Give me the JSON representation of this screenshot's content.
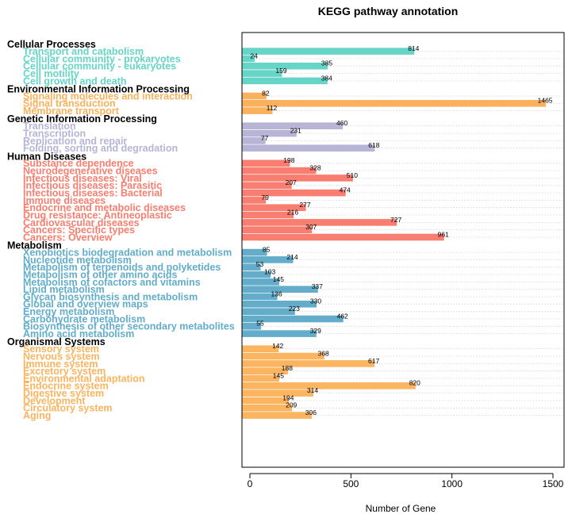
{
  "chart_data": {
    "type": "bar",
    "orientation": "horizontal",
    "title": "KEGG pathway annotation",
    "xlabel": "Number of Gene",
    "ylabel": "",
    "xlim": [
      0,
      1500
    ],
    "xticks": [
      0,
      500,
      1000,
      1500
    ],
    "grid": "dotted horizontal row lines",
    "groups": [
      {
        "name": "Cellular Processes",
        "color": "#66D4C6",
        "items": [
          {
            "label": "Transport and catabolism",
            "value": 814
          },
          {
            "label": "Cellular community - prokaryotes",
            "value": 24
          },
          {
            "label": "Cellular community - eukaryotes",
            "value": 385
          },
          {
            "label": "Cell motility",
            "value": 159
          },
          {
            "label": "Cell growth and death",
            "value": 384
          }
        ]
      },
      {
        "name": "Environmental Information Processing",
        "color": "#F9B15E",
        "items": [
          {
            "label": "Signaling molecules and interaction",
            "value": 82
          },
          {
            "label": "Signal transduction",
            "value": 1465
          },
          {
            "label": "Membrane transport",
            "value": 112
          }
        ]
      },
      {
        "name": "Genetic Information Processing",
        "color": "#B7B4D6",
        "items": [
          {
            "label": "Translation",
            "value": 460
          },
          {
            "label": "Transcription",
            "value": 231
          },
          {
            "label": "Replication and repair",
            "value": 77
          },
          {
            "label": "Folding, sorting and degradation",
            "value": 618
          }
        ]
      },
      {
        "name": "Human Diseases",
        "color": "#F77E70",
        "items": [
          {
            "label": "Substance dependence",
            "value": 198
          },
          {
            "label": "Neurodegenerative diseases",
            "value": 328
          },
          {
            "label": "Infectious diseases: Viral",
            "value": 510
          },
          {
            "label": "Infectious diseases: Parasitic",
            "value": 207
          },
          {
            "label": "Infectious diseases: Bacterial",
            "value": 474
          },
          {
            "label": "Immune diseases",
            "value": 79
          },
          {
            "label": "Endocrine and metabolic diseases",
            "value": 277
          },
          {
            "label": "Drug resistance: Antineoplastic",
            "value": 216
          },
          {
            "label": "Cardiovascular diseases",
            "value": 727
          },
          {
            "label": "Cancers: Specific types",
            "value": 307
          },
          {
            "label": "Cancers: Overview",
            "value": 961
          }
        ]
      },
      {
        "name": "Metabolism",
        "color": "#63ADCA",
        "items": [
          {
            "label": "Xenobiotics biodegradation and metabolism",
            "value": 85
          },
          {
            "label": "Nucleotide metabolism",
            "value": 214
          },
          {
            "label": "Metabolism of terpenoids and polyketides",
            "value": 53
          },
          {
            "label": "Metabolism of other amino acids",
            "value": 103
          },
          {
            "label": "Metabolism of cofactors and vitamins",
            "value": 145
          },
          {
            "label": "Lipid metabolism",
            "value": 337
          },
          {
            "label": "Glycan biosynthesis and metabolism",
            "value": 136
          },
          {
            "label": "Global and overview maps",
            "value": 330
          },
          {
            "label": "Energy metabolism",
            "value": 223
          },
          {
            "label": "Carbohydrate metabolism",
            "value": 462
          },
          {
            "label": "Biosynthesis of other secondary metabolites",
            "value": 55
          },
          {
            "label": "Amino acid metabolism",
            "value": 329
          }
        ]
      },
      {
        "name": "Organismal Systems",
        "color": "#FBB460",
        "items": [
          {
            "label": "Sensory system",
            "value": 142
          },
          {
            "label": "Nervous system",
            "value": 368
          },
          {
            "label": "Immune system",
            "value": 617
          },
          {
            "label": "Excretory system",
            "value": 188
          },
          {
            "label": "Environmental adaptation",
            "value": 145
          },
          {
            "label": "Endocrine system",
            "value": 820
          },
          {
            "label": "Digestive system",
            "value": 314
          },
          {
            "label": "Development",
            "value": 194
          },
          {
            "label": "Circulatory system",
            "value": 209
          },
          {
            "label": "Aging",
            "value": 306
          }
        ]
      }
    ]
  }
}
